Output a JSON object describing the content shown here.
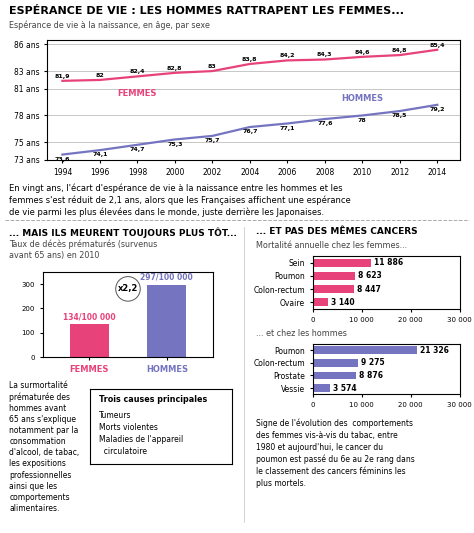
{
  "chart_data": [
    {
      "type": "line",
      "title": "ESPÉRANCE DE VIE : LES HOMMES RATTRAPENT LES FEMMES...",
      "subtitle": "Espérance de vie à la naissance, en âge, par sexe",
      "x": [
        1994,
        1996,
        1998,
        2000,
        2002,
        2004,
        2006,
        2008,
        2010,
        2012,
        2014
      ],
      "xlim": [
        1993.2,
        2015.2
      ],
      "xticks": [
        1994,
        1996,
        1998,
        2000,
        2002,
        2004,
        2006,
        2008,
        2010,
        2012,
        2014
      ],
      "ylim": [
        73,
        86.5
      ],
      "yticks": [
        {
          "value": 73,
          "label": "73 ans"
        },
        {
          "value": 75,
          "label": "75 ans"
        },
        {
          "value": 78,
          "label": "78 ans"
        },
        {
          "value": 81,
          "label": "81 ans"
        },
        {
          "value": 83,
          "label": "83 ans"
        },
        {
          "value": 86,
          "label": "86 ans"
        }
      ],
      "grid": "y",
      "data_labels": true,
      "series": [
        {
          "name": "FEMMES",
          "color": "#e8427a",
          "values": [
            81.9,
            82.0,
            82.4,
            82.8,
            83.0,
            83.8,
            84.2,
            84.3,
            84.6,
            84.8,
            85.4
          ],
          "value_labels": [
            "81,9",
            "82",
            "82,4",
            "82,8",
            "83",
            "83,8",
            "84,2",
            "84,3",
            "84,6",
            "84,8",
            "85,4"
          ]
        },
        {
          "name": "HOMMES",
          "color": "#7474c1",
          "values": [
            73.6,
            74.1,
            74.7,
            75.3,
            75.7,
            76.7,
            77.1,
            77.6,
            78.0,
            78.5,
            79.2
          ],
          "value_labels": [
            "73,6",
            "74,1",
            "74,7",
            "75,3",
            "75,7",
            "76,7",
            "77,1",
            "77,6",
            "78",
            "78,5",
            "79,2"
          ]
        }
      ],
      "annotations": [
        "En vingt ans, l'écart d'espérance de vie à la naissance entre les hommes et les\nfemmes s'est réduit de 2,1 ans, alors que les Françaises affichent une espérance\nde vie parmi les plus élevées dans le monde, juste derrière les Japonaises."
      ]
    },
    {
      "type": "bar",
      "title": "... MAIS ILS MEURENT TOUJOURS PLUS TÔT...",
      "subtitle": "Taux de décès prématurés (survenus\navant 65 ans) en 2010",
      "categories": [
        "FEMMES",
        "HOMMES"
      ],
      "values": [
        134,
        297
      ],
      "value_labels": [
        "134/100 000",
        "297/100 000"
      ],
      "colors": [
        "#e8427a",
        "#7474c1"
      ],
      "ylim": [
        0,
        350
      ],
      "yticks": [
        0,
        100,
        200,
        300
      ],
      "data_labels": true,
      "annotations": [
        "x2,2",
        "La surmortalité\nprématurée des\nhommes avant\n65 ans s'explique\nnotamment par la\nconsommation\nd'alcool, de tabac,\nles expositions\nprofessionnelles\nainsi que les\ncomportements\nalimentaires.",
        "Trois causes principales",
        "Tumeurs",
        "Morts violentes",
        "Maladies de l'appareil\n  circulatoire"
      ]
    },
    {
      "type": "bar",
      "orientation": "horizontal",
      "title": "... ET PAS DES MÊMES CANCERS",
      "subtitle": "Mortalité annuelle chez les femmes...",
      "categories": [
        "Sein",
        "Poumon",
        "Colon-rectum",
        "Ovaire"
      ],
      "values": [
        11886,
        8623,
        8447,
        3140
      ],
      "value_labels": [
        "11 886",
        "8 623",
        "8 447",
        "3 140"
      ],
      "color": "#e8427a",
      "xlim": [
        0,
        30000
      ],
      "xticks": [
        0,
        {
          "value": 10000,
          "label": "10 000"
        },
        {
          "value": 20000,
          "label": "20 000"
        },
        {
          "value": 30000,
          "label": "30 000"
        }
      ],
      "data_labels": true
    },
    {
      "type": "bar",
      "orientation": "horizontal",
      "subtitle": "... et chez les hommes",
      "categories": [
        "Poumon",
        "Colon-rectum",
        "Prostate",
        "Vessie"
      ],
      "values": [
        21326,
        9275,
        8876,
        3574
      ],
      "value_labels": [
        "21 326",
        "9 275",
        "8 876",
        "3 574"
      ],
      "color": "#7474c1",
      "xlim": [
        0,
        30000
      ],
      "xticks": [
        0,
        {
          "value": 10000,
          "label": "10 000"
        },
        {
          "value": 20000,
          "label": "20 000"
        },
        {
          "value": 30000,
          "label": "30 000"
        }
      ],
      "data_labels": true,
      "annotations": [
        "Signe de l'évolution des  comportements\ndes femmes vis-à-vis du tabac, entre\n1980 et aujourd'hui, le cancer du\npoumon est passé du 6e au 2e rang dans\nle classement des cancers féminins les\nplus mortels."
      ]
    }
  ]
}
